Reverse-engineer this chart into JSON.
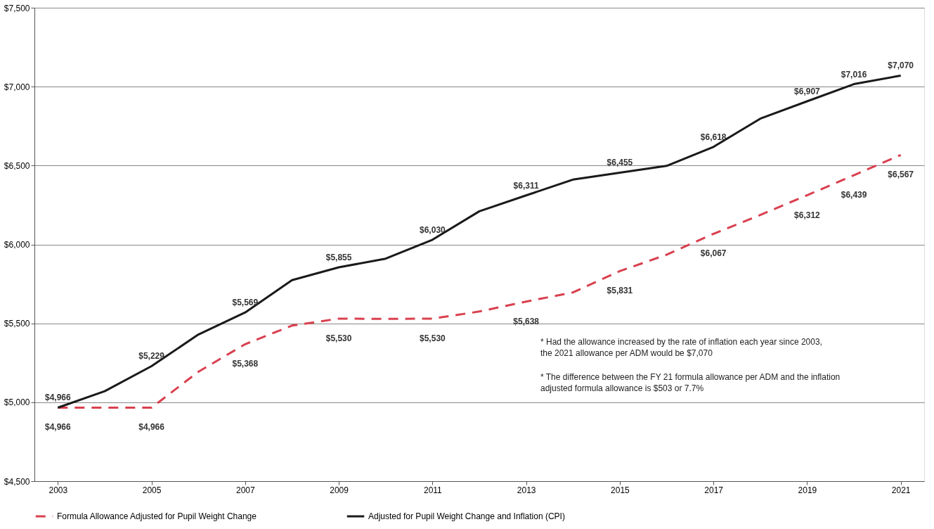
{
  "chart_data": {
    "type": "line",
    "x": [
      2003,
      2004,
      2005,
      2006,
      2007,
      2008,
      2009,
      2010,
      2011,
      2012,
      2013,
      2014,
      2015,
      2016,
      2017,
      2018,
      2019,
      2020,
      2021
    ],
    "series": [
      {
        "name": "Formula Allowance Adjusted for Pupil Weight Change",
        "color": "#d9404f",
        "line_style": "dashed",
        "values": [
          4966,
          4966,
          4966,
          5193,
          5368,
          5486,
          5530,
          5528,
          5530,
          5575,
          5638,
          5696,
          5831,
          5935,
          6067,
          6187,
          6312,
          6439,
          6567
        ],
        "value_labels": [
          "$4,966",
          null,
          "$4,966",
          null,
          "$5,368",
          null,
          "$5,530",
          null,
          "$5,530",
          null,
          "$5,638",
          null,
          "$5,831",
          null,
          "$6,067",
          null,
          "$6,312",
          "$6,439",
          "$6,567"
        ]
      },
      {
        "name": "Adjusted for Pupil Weight Change and Inflation (CPI)",
        "color": "#1a1a1a",
        "line_style": "solid",
        "values": [
          4966,
          5070,
          5229,
          5429,
          5569,
          5774,
          5855,
          5910,
          6030,
          6210,
          6311,
          6411,
          6455,
          6498,
          6618,
          6797,
          6907,
          7016,
          7070
        ],
        "value_labels": [
          "$4,966",
          null,
          "$5,229",
          null,
          "$5,569",
          null,
          "$5,855",
          null,
          "$6,030",
          null,
          "$6,311",
          null,
          "$6,455",
          null,
          "$6,618",
          null,
          "$6,907",
          "$7,016",
          "$7,070"
        ]
      }
    ],
    "xlim": [
      2002.5,
      2021.5
    ],
    "xticks": [
      2003,
      2005,
      2007,
      2009,
      2011,
      2013,
      2015,
      2017,
      2019,
      2021
    ],
    "ylim": [
      4500,
      7500
    ],
    "yticks": [
      {
        "value": 4500,
        "label": "$4,500"
      },
      {
        "value": 5000,
        "label": "$5,000"
      },
      {
        "value": 5500,
        "label": "$5,500"
      },
      {
        "value": 6000,
        "label": "$6,000"
      },
      {
        "value": 6500,
        "label": "$6,500"
      },
      {
        "value": 7000,
        "label": "$7,000"
      },
      {
        "value": 7500,
        "label": "$7,500"
      }
    ],
    "grid": "y",
    "legend": "bottom",
    "marker": "none",
    "annotations": [
      "* Had the allowance increased by the rate of inflation each year since 2003, the 2021 allowance per ADM would be $7,070",
      "* The difference between the FY 21 formula allowance per ADM and the inflation adjusted formula allowance is $503 or 7.7%"
    ]
  }
}
